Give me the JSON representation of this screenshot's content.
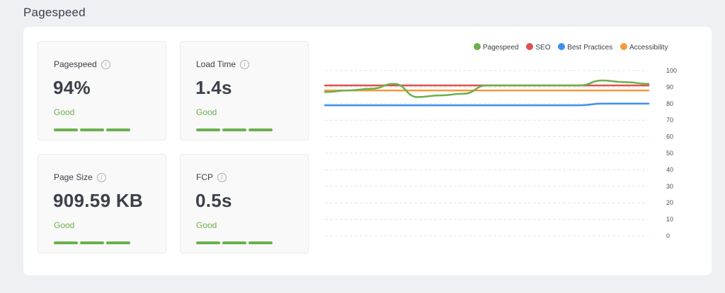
{
  "section": {
    "title": "Pagespeed"
  },
  "cards": [
    {
      "label": "Pagespeed",
      "value": "94%",
      "status": "Good"
    },
    {
      "label": "Load Time",
      "value": "1.4s",
      "status": "Good"
    },
    {
      "label": "Page Size",
      "value": "909.59 KB",
      "status": "Good"
    },
    {
      "label": "FCP",
      "value": "0.5s",
      "status": "Good"
    }
  ],
  "info_icon": "info-icon",
  "colors": {
    "good": "#6ab04c",
    "pagespeed": "#6ab04c",
    "seo": "#e0504f",
    "best_practices": "#3d8ff2",
    "accessibility": "#f59a3c"
  },
  "chart_data": {
    "type": "line",
    "legend_position": "top-right",
    "grid": true,
    "ylim": [
      0,
      100
    ],
    "yticks": [
      100,
      90,
      80,
      70,
      60,
      50,
      40,
      30,
      20,
      10,
      0
    ],
    "x": [
      1,
      2,
      3,
      4,
      5,
      6,
      7,
      8,
      9,
      10,
      11,
      12,
      13,
      14,
      15
    ],
    "series": [
      {
        "name": "Pagespeed",
        "color": "#6ab04c",
        "values": [
          87,
          88,
          89,
          92,
          84,
          85,
          86,
          91,
          91,
          91,
          91,
          91,
          94,
          93,
          92
        ]
      },
      {
        "name": "SEO",
        "color": "#e0504f",
        "values": [
          91,
          91,
          91,
          91,
          91,
          91,
          91,
          91,
          91,
          91,
          91,
          91,
          91,
          91,
          91
        ]
      },
      {
        "name": "Best Practices",
        "color": "#3d8ff2",
        "values": [
          79,
          79,
          79,
          79,
          79,
          79,
          79,
          79,
          79,
          79,
          79,
          79,
          80,
          80,
          80
        ]
      },
      {
        "name": "Accessibility",
        "color": "#f59a3c",
        "values": [
          88,
          88,
          88,
          88,
          88,
          88,
          88,
          88,
          88,
          88,
          88,
          88,
          88,
          88,
          88
        ]
      }
    ]
  }
}
